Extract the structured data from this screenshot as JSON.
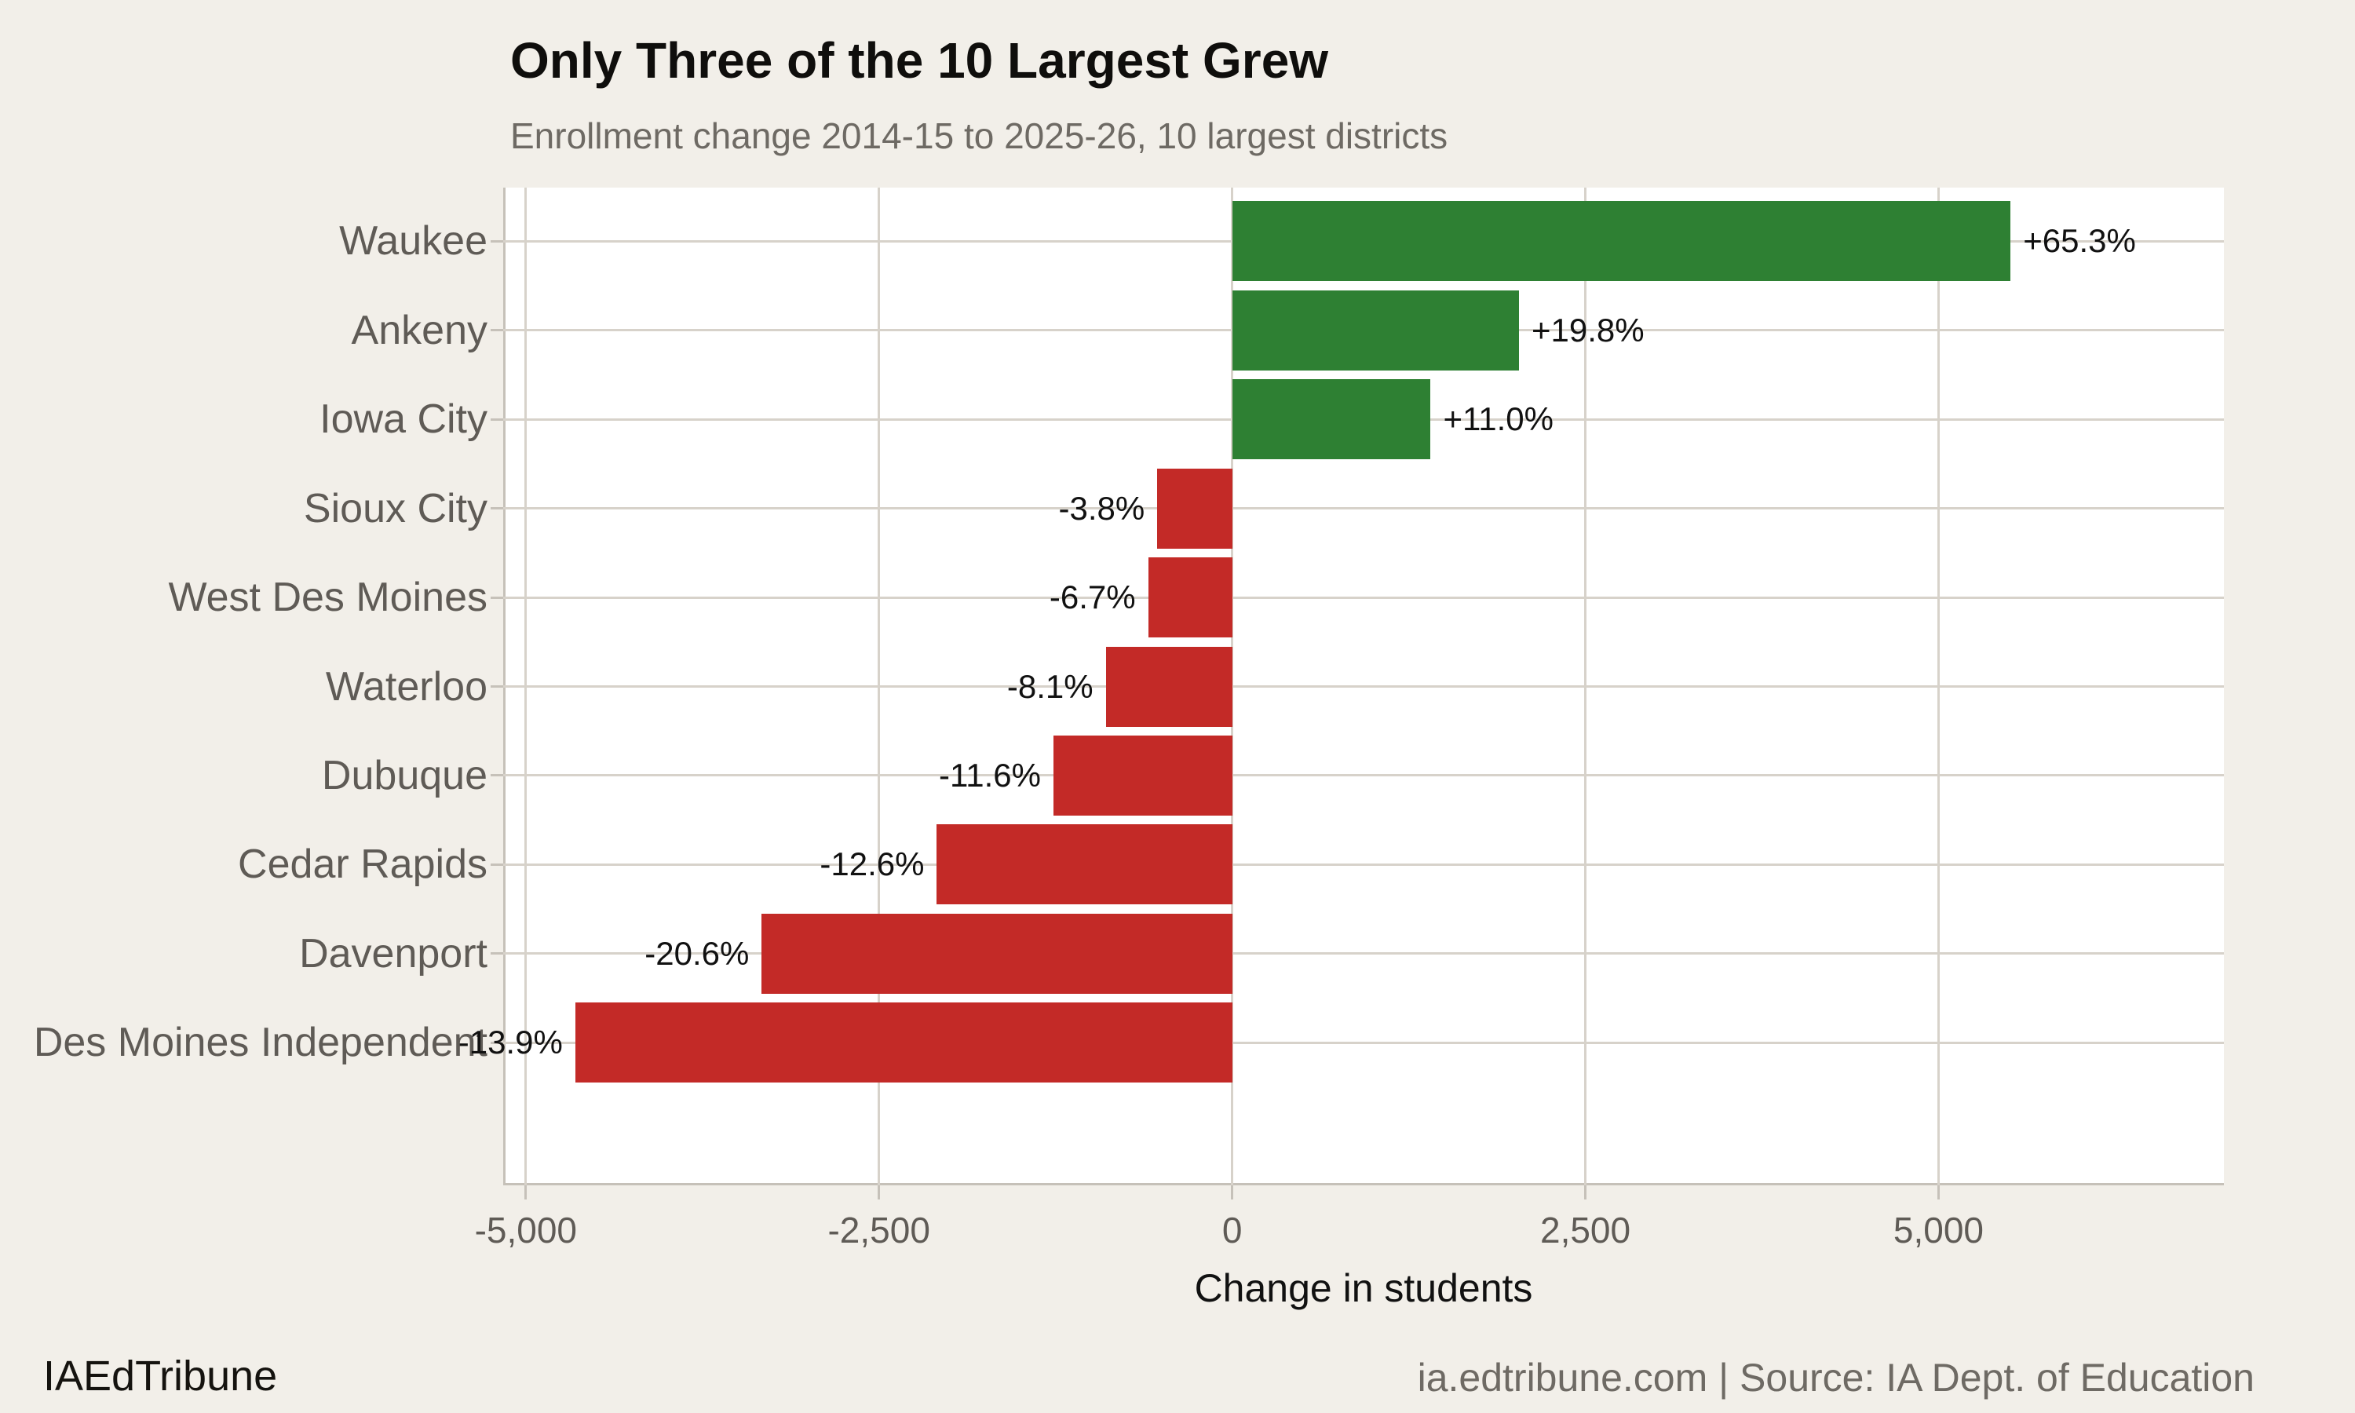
{
  "header": {
    "title": "Only Three of the 10 Largest Grew",
    "subtitle": "Enrollment change 2014-15 to 2025-26, 10 largest districts"
  },
  "footer": {
    "brand": "IAEdTribune",
    "source": "ia.edtribune.com | Source: IA Dept. of Education"
  },
  "chart_data": {
    "type": "bar",
    "orientation": "horizontal",
    "title": "Only Three of the 10 Largest Grew",
    "subtitle": "Enrollment change 2014-15 to 2025-26, 10 largest districts",
    "xlabel": "Change in students",
    "ylabel": "",
    "categories": [
      "Waukee",
      "Ankeny",
      "Iowa City",
      "Sioux City",
      "West Des Moines",
      "Waterloo",
      "Dubuque",
      "Cedar Rapids",
      "Davenport",
      "Des Moines Independent"
    ],
    "values": [
      5510,
      2030,
      1405,
      -530,
      -595,
      -895,
      -1265,
      -2090,
      -3330,
      -4650
    ],
    "bar_labels": [
      "+65.3%",
      "+19.8%",
      "+11.0%",
      "-3.8%",
      "-6.7%",
      "-8.1%",
      "-11.6%",
      "-12.6%",
      "-20.6%",
      "-13.9%"
    ],
    "xlim": [
      -5160,
      7020
    ],
    "xticks": [
      -5000,
      -2500,
      0,
      2500,
      5000
    ],
    "xtick_labels": [
      "-5,000",
      "-2,500",
      "0",
      "2,500",
      "5,000"
    ],
    "grid": true,
    "legend": "none",
    "colors": {
      "positive_bar": "#2e8033",
      "negative_bar": "#c32a27",
      "background": "#f2efe9",
      "panel_background": "#ffffff",
      "gridline": "#d7d2ca",
      "axis_line": "#c6c1b9",
      "axis_text": "#5f5b56",
      "subtitle_text": "#6e6a64",
      "title_text": "#0f0e0c",
      "value_label_text": "#111111"
    }
  }
}
